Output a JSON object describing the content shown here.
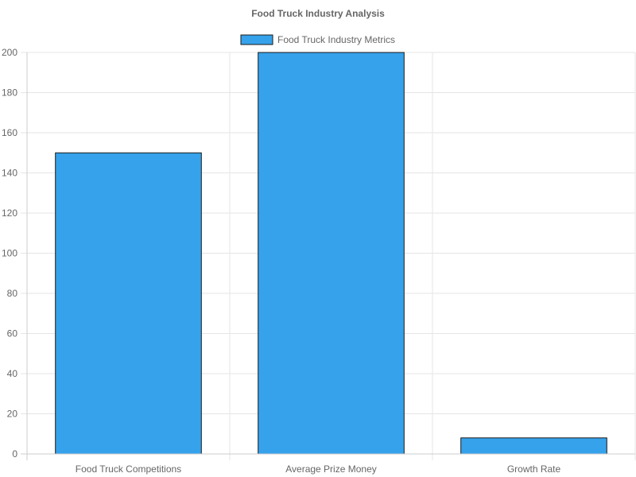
{
  "chart_data": {
    "type": "bar",
    "title": "Food Truck Industry Analysis",
    "categories": [
      "Food Truck Competitions",
      "Average Prize Money",
      "Growth Rate"
    ],
    "series": [
      {
        "name": "Food Truck Industry Metrics",
        "values": [
          150,
          200,
          8
        ],
        "color": "#36a2eb",
        "border_color": "#1a1a1a"
      }
    ],
    "ylim": [
      0,
      200
    ],
    "yticks": [
      0,
      20,
      40,
      60,
      80,
      100,
      120,
      140,
      160,
      180,
      200
    ],
    "grid": true,
    "legend_position": "top"
  }
}
